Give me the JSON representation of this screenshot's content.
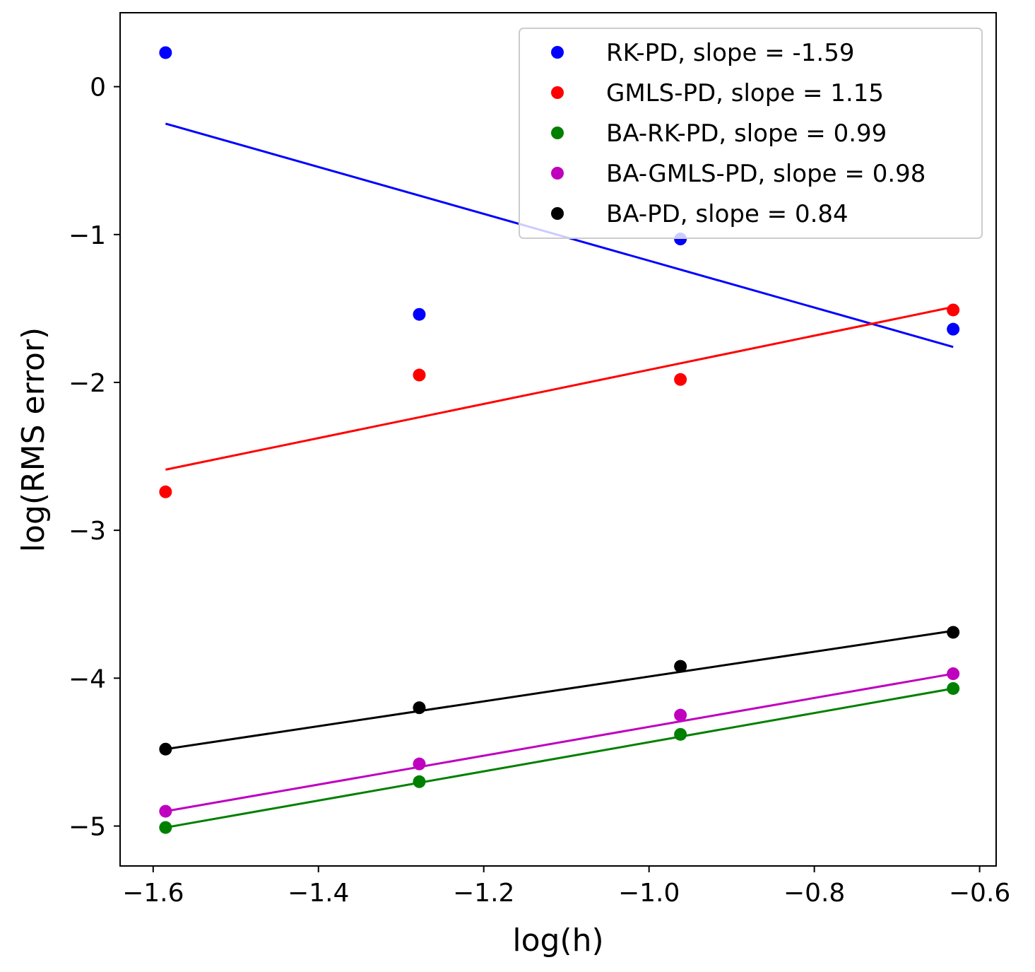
{
  "chart_data": {
    "type": "scatter",
    "title": "",
    "xlabel": "log(h)",
    "ylabel": "log(RMS error)",
    "xlim": [
      -1.64,
      -0.58
    ],
    "ylim": [
      -5.27,
      0.5
    ],
    "xticks": [
      -1.6,
      -1.4,
      -1.2,
      -1.0,
      -0.8,
      -0.6
    ],
    "xtick_labels": [
      "−1.6",
      "−1.4",
      "−1.2",
      "−1.0",
      "−0.8",
      "−0.6"
    ],
    "yticks": [
      0,
      -1,
      -2,
      -3,
      -4,
      -5
    ],
    "ytick_labels": [
      "0",
      "−1",
      "−2",
      "−3",
      "−4",
      "−5"
    ],
    "grid": false,
    "legend_position": "top-right",
    "x": [
      -1.585,
      -1.278,
      -0.962,
      -0.632
    ],
    "series": [
      {
        "name": "RK-PD",
        "label": "RK-PD, slope = -1.59",
        "color": "#0000ff",
        "values": [
          0.23,
          -1.54,
          -1.03,
          -1.64
        ],
        "fit": [
          -0.25,
          -1.76
        ]
      },
      {
        "name": "GMLS-PD",
        "label": "GMLS-PD, slope = 1.15",
        "color": "#ff0000",
        "values": [
          -2.74,
          -1.95,
          -1.98,
          -1.51
        ],
        "fit": [
          -2.59,
          -1.49
        ]
      },
      {
        "name": "BA-RK-PD",
        "label": "BA-RK-PD, slope = 0.99",
        "color": "#008000",
        "values": [
          -5.01,
          -4.7,
          -4.38,
          -4.07
        ],
        "fit": [
          -5.01,
          -4.07
        ]
      },
      {
        "name": "BA-GMLS-PD",
        "label": "BA-GMLS-PD, slope = 0.98",
        "color": "#bf00bf",
        "values": [
          -4.9,
          -4.58,
          -4.25,
          -3.97
        ],
        "fit": [
          -4.9,
          -3.97
        ]
      },
      {
        "name": "BA-PD",
        "label": "BA-PD, slope = 0.84",
        "color": "#000000",
        "values": [
          -4.48,
          -4.2,
          -3.92,
          -3.69
        ],
        "fit": [
          -4.48,
          -3.68
        ]
      }
    ]
  }
}
